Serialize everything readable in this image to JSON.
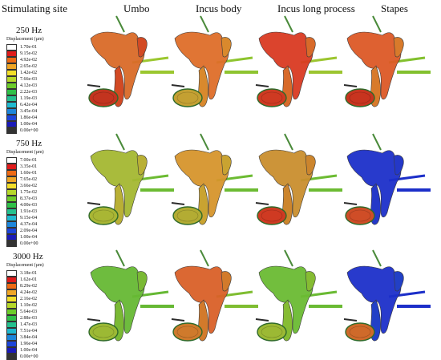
{
  "headers": {
    "site": "Stimulating site",
    "col1": "Umbo",
    "col2": "Incus body",
    "col3": "Incus long process",
    "col4": "Stapes"
  },
  "rows": [
    {
      "freq": "250 Hz",
      "legend_title": "Displacement (µm)",
      "legend": [
        "1.70e-01",
        "9.15e-02",
        "4.92e-02",
        "2.65e-02",
        "1.42e-02",
        "7.66e-03",
        "4.12e-03",
        "2.22e-03",
        "1.19e-03",
        "6.42e-04",
        "3.45e-04",
        "1.86e-04",
        "1.00e-04",
        "0.00e+00"
      ],
      "cells": [
        {
          "body": "#d96a28",
          "lower": "#d24a24",
          "pad": "#c3341f",
          "tip": "#9bc72f"
        },
        {
          "body": "#de6e29",
          "lower": "#d9892d",
          "pad": "#c4a032",
          "tip": "#8ec42f"
        },
        {
          "body": "#d93a22",
          "lower": "#d86a2a",
          "pad": "#cf3a22",
          "tip": "#9cc52f"
        },
        {
          "body": "#dc5926",
          "lower": "#d87a2b",
          "pad": "#c8341f",
          "tip": "#82c02e"
        }
      ]
    },
    {
      "freq": "750 Hz",
      "legend_title": "Displacement (µm)",
      "legend": [
        "7.00e-01",
        "3.35e-01",
        "1.60e-01",
        "7.65e-02",
        "3.66e-02",
        "1.75e-02",
        "8.37e-03",
        "4.00e-03",
        "1.91e-03",
        "9.15e-04",
        "4.37e-04",
        "2.09e-04",
        "1.00e-04",
        "0.00e+00"
      ],
      "cells": [
        {
          "body": "#a4b732",
          "lower": "#b9b035",
          "pad": "#a9b634",
          "tip": "#6cbb32"
        },
        {
          "body": "#d6952c",
          "lower": "#c9a331",
          "pad": "#b3ac33",
          "tip": "#6cbb32"
        },
        {
          "body": "#c98e2e",
          "lower": "#cc852d",
          "pad": "#cf3a22",
          "tip": "#6cbb32"
        },
        {
          "body": "#1c2fc9",
          "lower": "#2438c8",
          "pad": "#cf4d27",
          "tip": "#1c2fc9"
        }
      ]
    },
    {
      "freq": "3000 Hz",
      "legend_title": "Displacement (µm)",
      "legend": [
        "3.18e-01",
        "1.62e-01",
        "8.29e-02",
        "4.24e-02",
        "2.16e-02",
        "1.10e-02",
        "5.64e-03",
        "2.88e-03",
        "1.47e-03",
        "7.51e-04",
        "3.84e-04",
        "1.96e-04",
        "1.00e-04",
        "0.00e+00"
      ],
      "cells": [
        {
          "body": "#66b834",
          "lower": "#7ab934",
          "pad": "#9cb934",
          "tip": "#66b834"
        },
        {
          "body": "#d96028",
          "lower": "#d27a2b",
          "pad": "#cf7a2c",
          "tip": "#7fbd31"
        },
        {
          "body": "#6aba33",
          "lower": "#86bc33",
          "pad": "#9cb934",
          "tip": "#6aba33"
        },
        {
          "body": "#1c2fc9",
          "lower": "#2240c6",
          "pad": "#cf6a2a",
          "tip": "#1c2fc9"
        }
      ]
    }
  ],
  "legend_colors": [
    "#ffffff",
    "#e01b1b",
    "#ee6a14",
    "#f0a626",
    "#f2de2a",
    "#b6d82a",
    "#6ccc2a",
    "#2fc048",
    "#24c08e",
    "#1fb9cf",
    "#1d86db",
    "#1d45d9",
    "#1b1bb8",
    "#333333"
  ]
}
